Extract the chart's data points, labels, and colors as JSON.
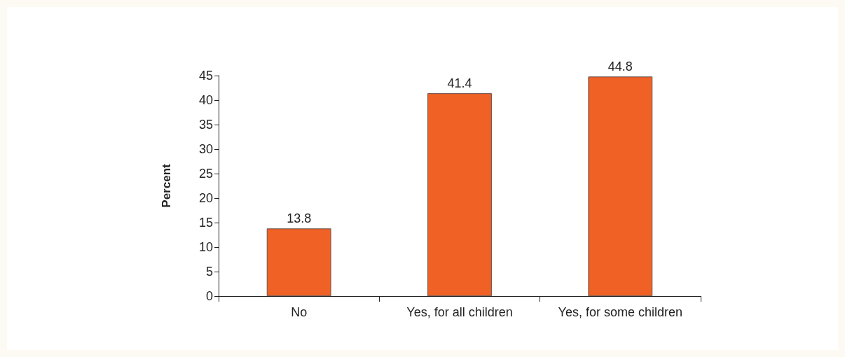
{
  "chart_data": {
    "type": "bar",
    "ylabel": "Percent",
    "categories": [
      "No",
      "Yes, for all children",
      "Yes, for some children"
    ],
    "values": [
      13.8,
      41.4,
      44.8
    ],
    "color": "#f06125",
    "ylim": [
      0,
      45
    ],
    "yticks": [
      0,
      5,
      10,
      15,
      20,
      25,
      30,
      35,
      40,
      45
    ],
    "data_labels": true,
    "grid": false
  }
}
